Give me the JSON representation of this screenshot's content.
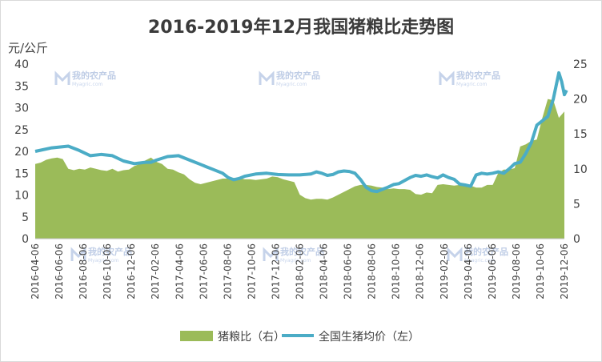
{
  "title": "2016-2019年12月我国猪粮比走势图",
  "left_axis_unit": "元/公斤",
  "watermark": {
    "text": "我的农产品",
    "sub": "Myagric.com"
  },
  "chart_data": {
    "type": "area+line",
    "x_labels": [
      "2016-04-06",
      "2016-06-06",
      "2016-08-06",
      "2016-10-06",
      "2016-12-06",
      "2017-02-06",
      "2017-04-06",
      "2017-06-06",
      "2017-08-06",
      "2017-10-06",
      "2017-12-06",
      "2018-02-06",
      "2018-04-06",
      "2018-06-06",
      "2018-08-06",
      "2018-10-06",
      "2018-12-06",
      "2019-02-06",
      "2019-04-06",
      "2019-06-06",
      "2019-08-06",
      "2019-10-06",
      "2019-12-06"
    ],
    "left_axis": {
      "ticks": [
        "0",
        "5",
        "10",
        "15",
        "20",
        "25",
        "30",
        "35",
        "40"
      ],
      "min": 0,
      "max": 40
    },
    "right_axis": {
      "ticks": [
        "0",
        "5",
        "10",
        "15",
        "20",
        "25"
      ],
      "min": 0,
      "max": 25
    },
    "series": [
      {
        "name": "猪粮比（右）",
        "type": "area",
        "axis": "right",
        "color": "#9bbb59",
        "values": [
          10.7,
          10.9,
          11.3,
          11.5,
          11.6,
          11.4,
          10.0,
          9.8,
          10.0,
          9.9,
          10.2,
          10.0,
          9.8,
          9.7,
          10.0,
          9.6,
          9.8,
          9.9,
          10.4,
          10.7,
          11.2,
          11.6,
          11.0,
          10.7,
          10.0,
          9.9,
          9.5,
          9.2,
          8.5,
          8.0,
          7.8,
          8.0,
          8.2,
          8.4,
          8.6,
          8.6,
          8.7,
          8.7,
          8.5,
          8.5,
          8.4,
          8.5,
          8.6,
          8.9,
          8.8,
          8.5,
          8.3,
          8.1,
          6.3,
          5.8,
          5.6,
          5.7,
          5.7,
          5.6,
          5.9,
          6.3,
          6.7,
          7.1,
          7.5,
          7.7,
          7.7,
          7.6,
          7.4,
          7.3,
          7.1,
          7.2,
          7.1,
          7.1,
          7.0,
          6.4,
          6.3,
          6.6,
          6.5,
          7.7,
          7.8,
          7.7,
          7.6,
          7.7,
          7.7,
          7.6,
          7.3,
          7.3,
          7.7,
          7.7,
          9.4,
          9.9,
          9.9,
          10.1,
          13.2,
          13.5,
          14.0,
          14.2,
          17.3,
          20.0,
          19.8,
          17.3,
          18.2
        ],
        "x_positions": [
          0,
          1,
          2,
          3,
          4,
          5,
          6,
          7,
          8,
          9,
          10,
          11,
          12,
          13,
          14,
          15,
          16,
          17,
          18,
          19,
          20,
          21,
          22,
          23,
          24,
          25,
          26,
          27,
          28,
          29,
          30,
          31,
          32,
          33,
          34,
          35,
          36,
          37,
          38,
          39,
          40,
          41,
          42,
          43,
          44,
          45,
          46,
          47,
          48,
          49,
          50,
          51,
          52,
          53,
          54,
          55,
          56,
          57,
          58,
          59,
          60,
          61,
          62,
          63,
          64,
          65,
          66,
          67,
          68,
          69,
          70,
          71,
          72,
          73,
          74,
          75,
          76,
          77,
          78,
          79,
          80,
          81,
          82,
          83,
          84,
          85,
          86,
          87,
          88,
          89,
          90,
          91,
          92,
          93,
          94,
          95,
          96
        ]
      },
      {
        "name": "全国生猪均价（左）",
        "type": "line",
        "axis": "left",
        "color": "#4bacc6",
        "values": [
          20.0,
          20.8,
          21.2,
          20.2,
          19.0,
          19.3,
          19.0,
          17.8,
          17.2,
          17.5,
          17.5,
          18.0,
          18.8,
          19.0,
          18.0,
          17.0,
          16.5,
          16.0,
          15.0,
          14.0,
          13.5,
          13.8,
          14.3,
          14.8,
          15.0,
          14.7,
          14.6,
          14.6,
          14.8,
          15.3,
          15.0,
          14.5,
          14.7,
          15.3,
          15.5,
          15.4,
          15.0,
          13.6,
          11.8,
          11.0,
          10.8,
          11.3,
          11.8,
          12.4,
          12.6,
          13.3,
          14.0,
          14.5,
          14.3,
          14.6,
          14.2,
          13.9,
          14.6,
          14.0,
          13.6,
          12.5,
          12.3,
          12.0,
          14.6,
          15.0,
          14.8,
          15.0,
          15.3,
          15.0,
          16.0,
          17.2,
          17.5,
          19.5,
          22.0,
          26.0,
          27.0,
          28.0,
          32.0,
          38.0,
          36.0,
          33.0,
          34.0
        ],
        "x_positions": [
          0,
          3,
          6,
          8,
          10,
          12,
          14,
          16,
          18,
          20,
          21,
          22,
          24,
          26,
          28,
          30,
          31,
          32,
          34,
          35,
          36,
          37,
          38,
          40,
          42,
          44,
          46,
          48,
          50,
          51,
          52,
          53,
          54,
          55,
          56,
          57,
          58,
          59,
          60,
          61,
          62,
          63,
          64,
          65,
          66,
          67,
          68,
          69,
          70,
          71,
          72,
          73,
          74,
          75,
          76,
          77,
          78,
          79,
          80,
          81,
          82,
          83,
          84,
          85,
          86,
          87,
          88,
          89,
          90,
          91,
          92,
          93,
          94,
          95,
          95.5,
          96,
          96.4
        ]
      }
    ]
  }
}
